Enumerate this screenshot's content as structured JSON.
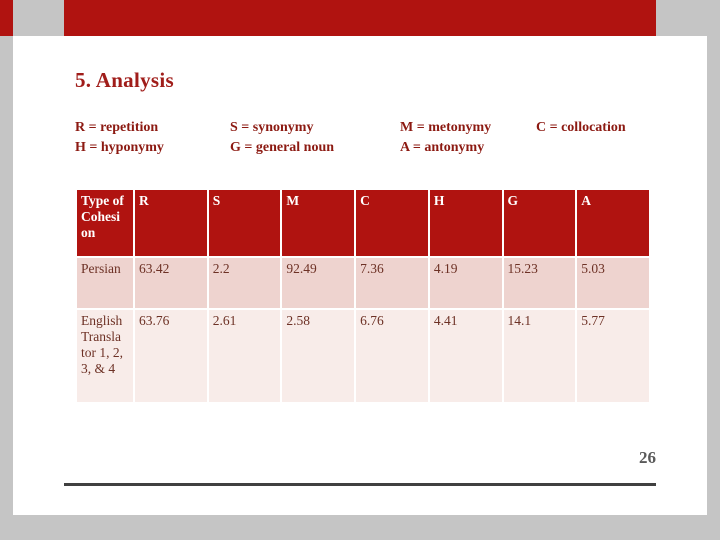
{
  "slide": {
    "title": "5. Analysis",
    "page_number": "26"
  },
  "legend": {
    "groups": [
      {
        "lines": [
          "R = repetition",
          "H = hyponymy"
        ]
      },
      {
        "lines": [
          "S = synonymy",
          "G = general noun"
        ]
      },
      {
        "lines": [
          "M = metonymy",
          "A = antonymy"
        ]
      },
      {
        "lines": [
          "C = collocation"
        ]
      }
    ]
  },
  "table": {
    "headers": [
      "Type of Cohesi on",
      "R",
      "S",
      "M",
      "C",
      "H",
      "G",
      "A"
    ],
    "rows": [
      {
        "label": "Persian",
        "values": [
          "63.42",
          "2.2",
          "92.49",
          "7.36",
          "4.19",
          "15.23",
          "5.03"
        ]
      },
      {
        "label": "English Transla tor 1, 2, 3, & 4",
        "values": [
          "63.76",
          "2.61",
          "2.58",
          "6.76",
          "4.41",
          "14.1",
          "5.77"
        ]
      }
    ]
  },
  "colors": {
    "accent": "#b01310",
    "table_header_bg": "#b01310",
    "table_header_text": "#ffffff",
    "row1_bg": "#eed3cf",
    "row2_bg": "#f8ece9",
    "body_text": "#6d3125",
    "title_text": "#a01d1a",
    "legend_text": "#8c1a12",
    "background_gray": "#c5c5c5"
  }
}
